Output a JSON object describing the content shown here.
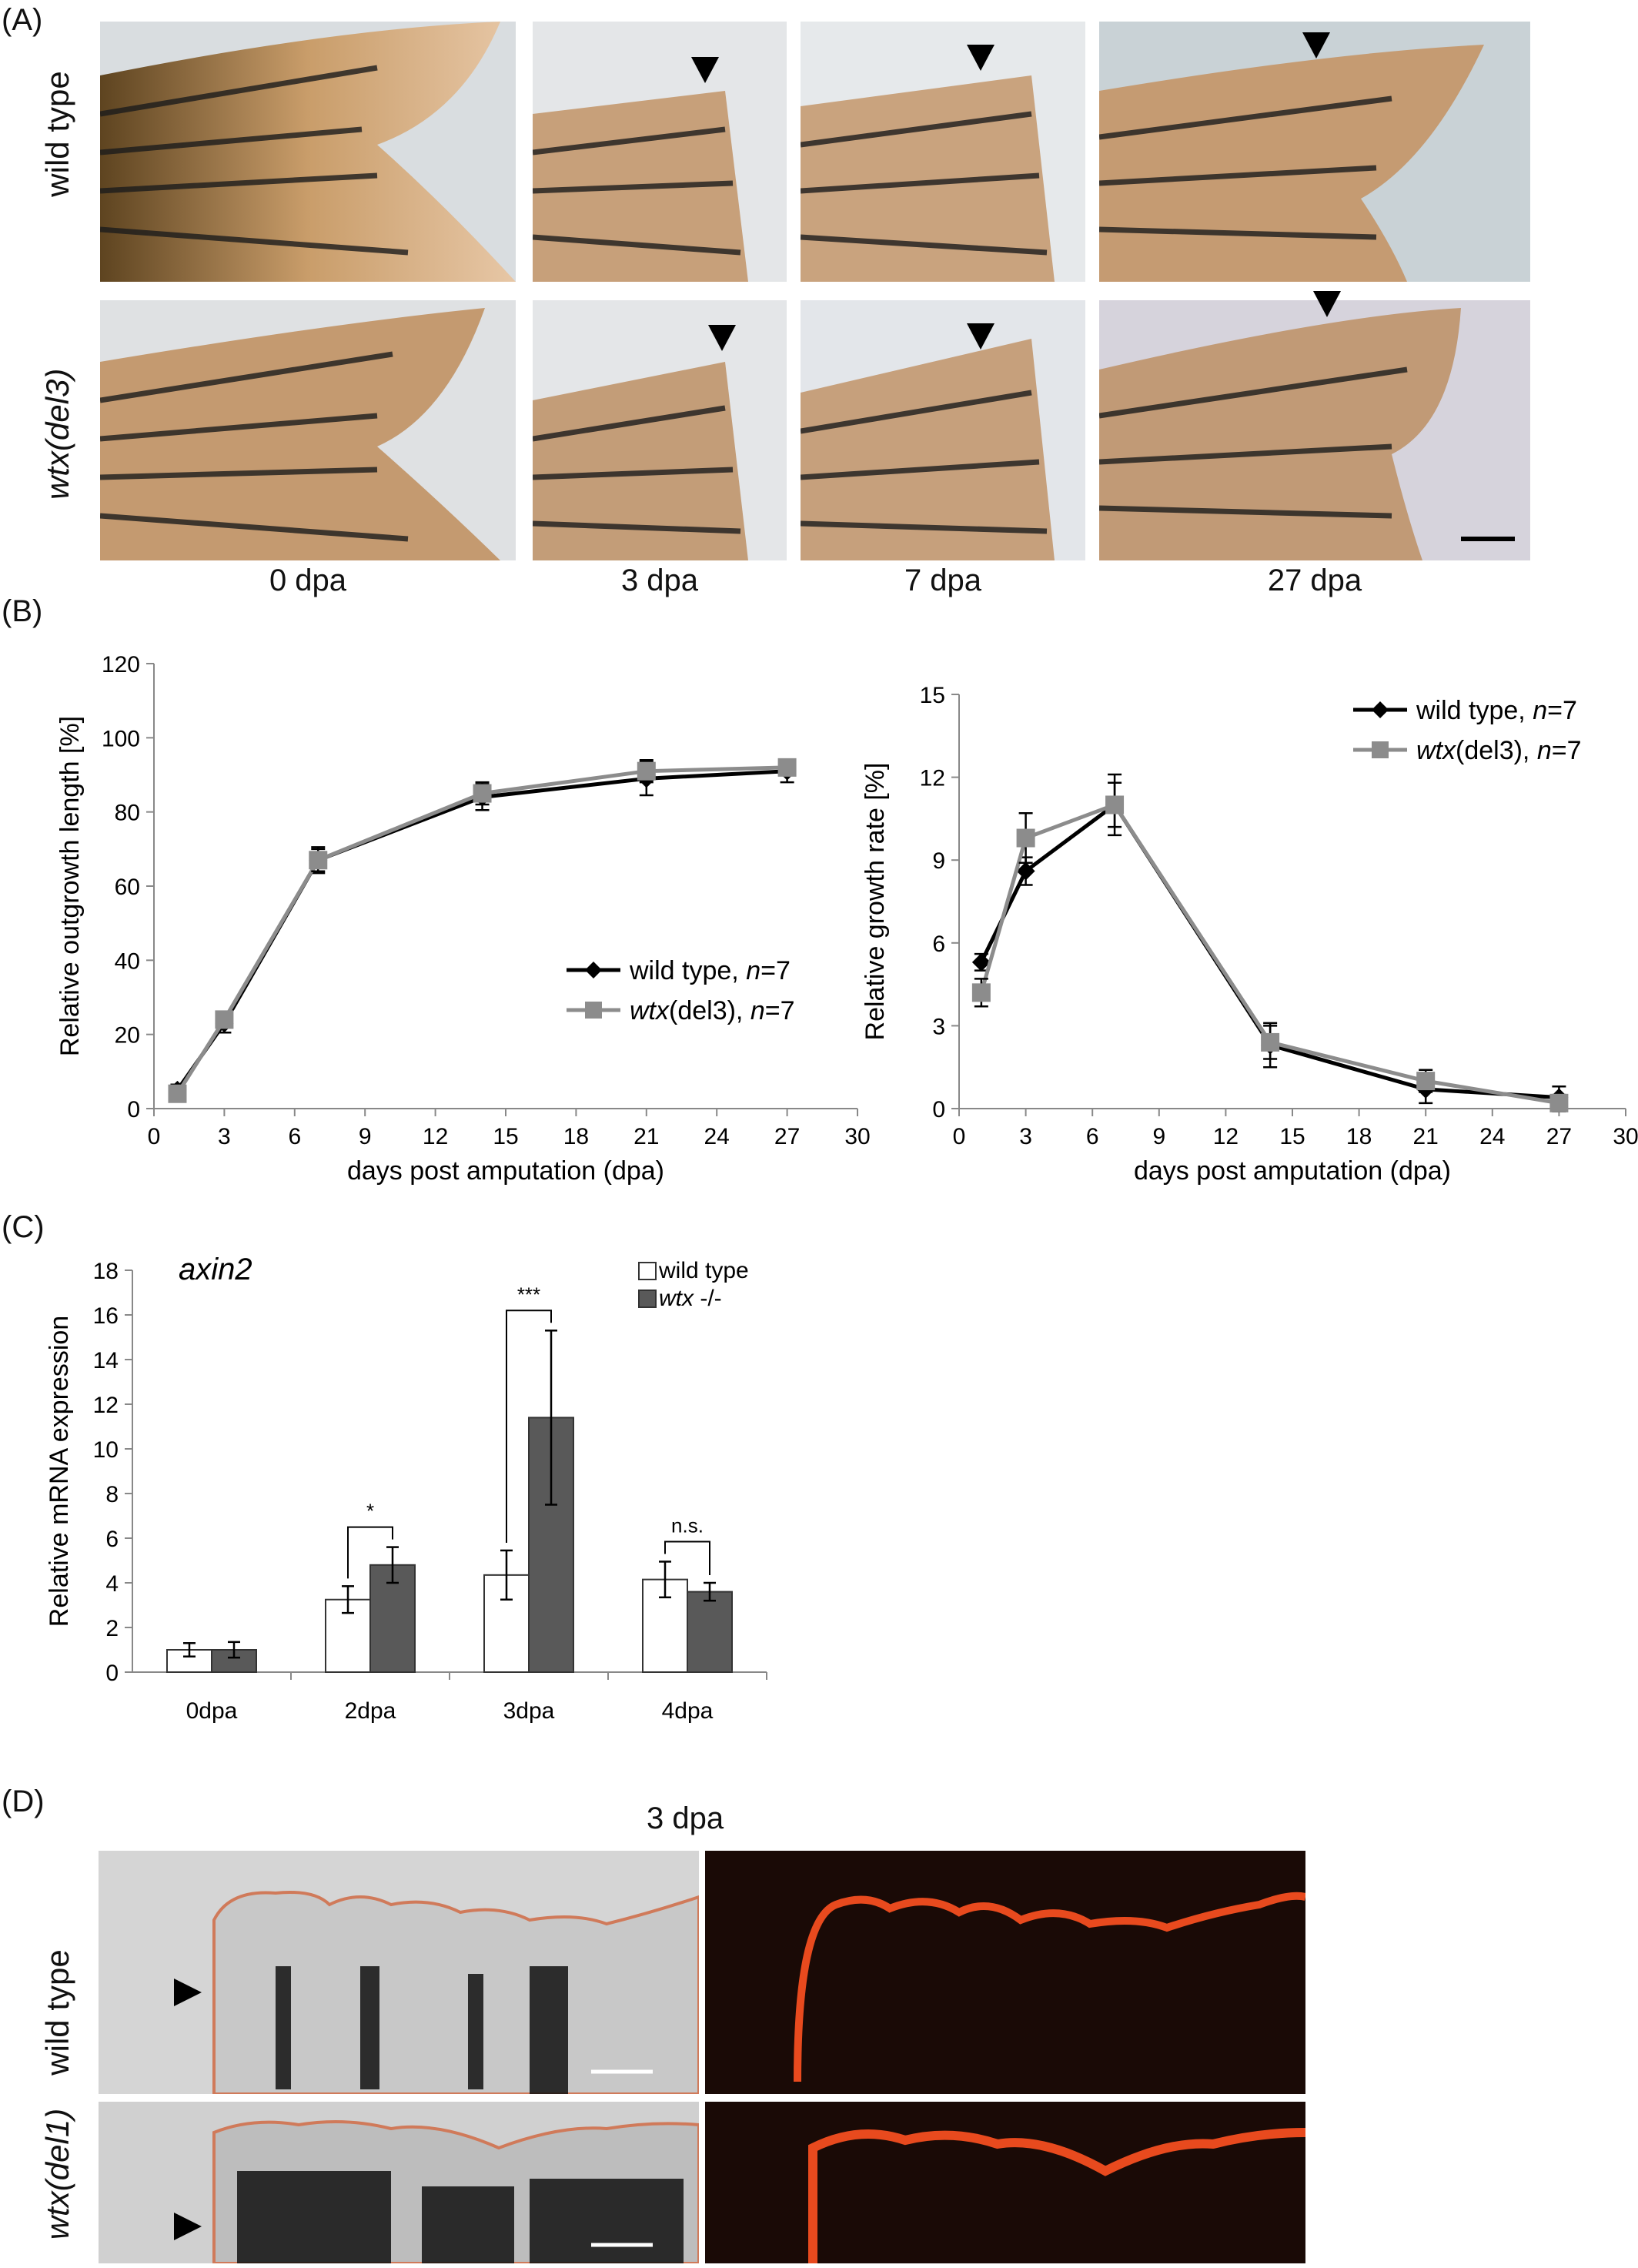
{
  "panels": {
    "A": {
      "label": "(A)",
      "rows": [
        "wild type",
        "wtx(del3)"
      ],
      "row_base": [
        "wtx",
        "(del3)"
      ],
      "columns": [
        "0 dpa",
        "3 dpa",
        "7 dpa",
        "27 dpa"
      ]
    },
    "B": {
      "label": "(B)"
    },
    "C": {
      "label": "(C)"
    },
    "D": {
      "label": "(D)",
      "title": "3 dpa",
      "rows": [
        "wild type",
        "wtx(del1)"
      ],
      "row_base": [
        "wtx",
        "(del1)"
      ]
    }
  },
  "chart_data": [
    {
      "id": "B-left",
      "type": "line",
      "xlabel": "days post amputation (dpa)",
      "ylabel": "Relative outgrowth length [%]",
      "xlim": [
        0,
        30
      ],
      "ylim": [
        0,
        120
      ],
      "xticks": [
        0,
        3,
        6,
        9,
        12,
        15,
        18,
        21,
        24,
        27,
        30
      ],
      "yticks": [
        0,
        20,
        40,
        60,
        80,
        100,
        120
      ],
      "x": [
        1,
        3,
        7,
        14,
        21,
        27
      ],
      "legend": "bottom-right",
      "series": [
        {
          "name": "wild type, n=7",
          "name_base": "wild type, ",
          "name_italic": "n",
          "name_tail": "=7",
          "color": "#000000",
          "marker": "diamond",
          "values": [
            5,
            23,
            67,
            84,
            89,
            91
          ],
          "errors": [
            1.5,
            2.5,
            3.5,
            3.5,
            4.5,
            3
          ]
        },
        {
          "name": "wtx(del3), n=7",
          "name_italic_pre": "wtx",
          "name_base": "(del3), ",
          "name_italic": "n",
          "name_tail": "=7",
          "color": "#8c8c8c",
          "marker": "square",
          "values": [
            4,
            24,
            67,
            85,
            91,
            92
          ],
          "errors": [
            1,
            2,
            3,
            3,
            3,
            2
          ]
        }
      ]
    },
    {
      "id": "B-right",
      "type": "line",
      "xlabel": "days post amputation (dpa)",
      "ylabel": "Relative growth rate [%]",
      "xlim": [
        0,
        30
      ],
      "ylim": [
        0,
        15
      ],
      "xticks": [
        0,
        3,
        6,
        9,
        12,
        15,
        18,
        21,
        24,
        27,
        30
      ],
      "yticks": [
        0,
        3,
        6,
        9,
        12,
        15
      ],
      "x": [
        1,
        3,
        7,
        14,
        21,
        27
      ],
      "legend": "top-right",
      "series": [
        {
          "name": "wild type, n=7",
          "name_base": "wild type, ",
          "name_italic": "n",
          "name_tail": "=7",
          "color": "#000000",
          "marker": "diamond",
          "values": [
            5.3,
            8.6,
            11,
            2.3,
            0.7,
            0.4
          ],
          "errors": [
            0.3,
            0.5,
            1.1,
            0.8,
            0.5,
            0.4
          ]
        },
        {
          "name": "wtx(del3), n=7",
          "name_italic_pre": "wtx",
          "name_base": "(del3), ",
          "name_italic": "n",
          "name_tail": "=7",
          "color": "#8c8c8c",
          "marker": "square",
          "values": [
            4.2,
            9.8,
            11,
            2.4,
            1,
            0.2
          ],
          "errors": [
            0.5,
            0.9,
            0.8,
            0.6,
            0.4,
            0.3
          ]
        }
      ]
    },
    {
      "id": "C",
      "type": "bar",
      "title": "axin2",
      "ylabel": "Relative mRNA expression",
      "categories": [
        "0dpa",
        "2dpa",
        "3dpa",
        "4dpa"
      ],
      "ylim": [
        0,
        18
      ],
      "yticks": [
        0,
        2,
        4,
        6,
        8,
        10,
        12,
        14,
        16,
        18
      ],
      "legend": "top-right",
      "series": [
        {
          "name": "wild type",
          "color": "#ffffff",
          "values": [
            1,
            3.25,
            4.35,
            4.15
          ],
          "errors": [
            0.3,
            0.6,
            1.1,
            0.8
          ]
        },
        {
          "name": "wtx -/-",
          "name_italic": "wtx",
          "name_tail": " -/-",
          "color": "#595959",
          "values": [
            1,
            4.8,
            11.4,
            3.6
          ],
          "errors": [
            0.35,
            0.8,
            3.9,
            0.4
          ]
        }
      ],
      "significance": [
        "",
        "*",
        "***",
        "n.s."
      ]
    }
  ]
}
